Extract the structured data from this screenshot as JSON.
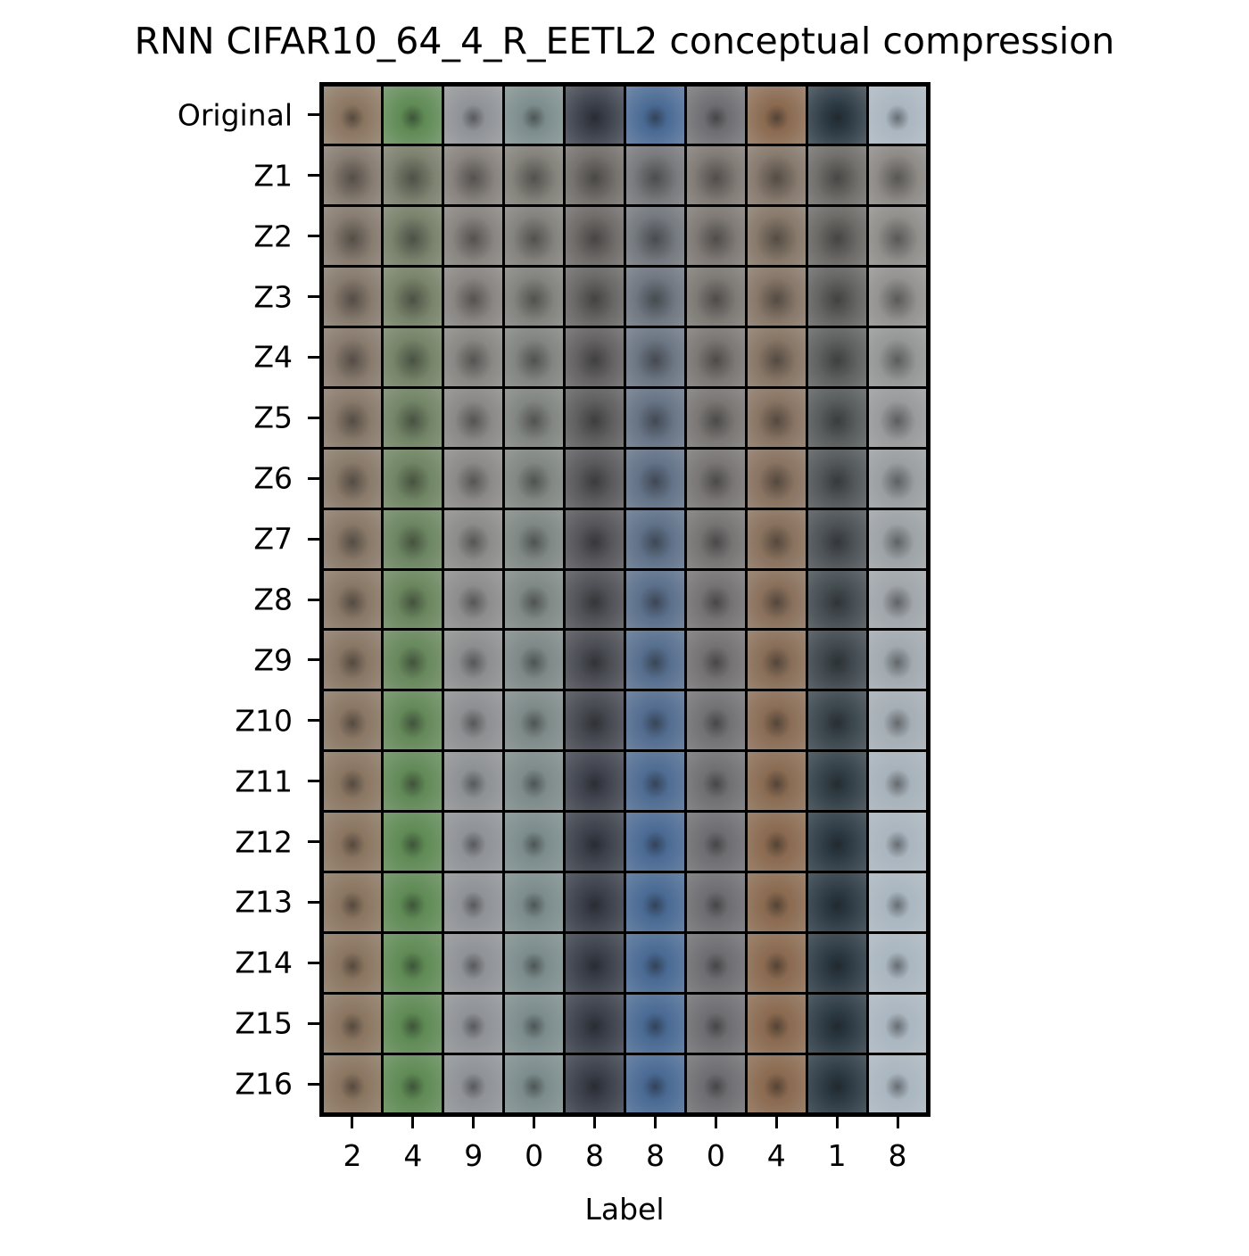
{
  "chart_data": {
    "type": "image_grid",
    "title": "RNN CIFAR10_64_4_R_EETL2 conceptual compression",
    "xlabel": "Label",
    "ylabel": "",
    "row_labels": [
      "Original",
      "Z1",
      "Z2",
      "Z3",
      "Z4",
      "Z5",
      "Z6",
      "Z7",
      "Z8",
      "Z9",
      "Z10",
      "Z11",
      "Z12",
      "Z13",
      "Z14",
      "Z15",
      "Z16"
    ],
    "column_labels": [
      "2",
      "4",
      "9",
      "0",
      "8",
      "8",
      "0",
      "4",
      "1",
      "8"
    ],
    "column_colors": [
      "#8a7560",
      "#5f8a55",
      "#8f9296",
      "#7c8c8c",
      "#3a3f4a",
      "#4a6a94",
      "#6e6e72",
      "#8a6a50",
      "#2c3a44",
      "#aab6c0"
    ]
  }
}
